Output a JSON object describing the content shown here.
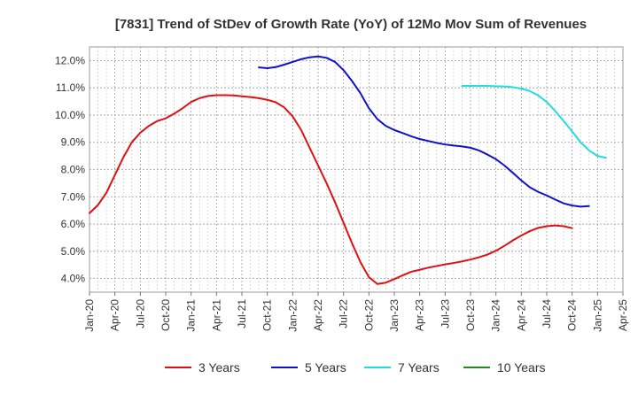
{
  "chart_data": {
    "type": "line",
    "title": "[7831]  Trend of StDev of Growth Rate (YoY) of 12Mo Mov Sum of Revenues",
    "xlabel": "",
    "ylabel": "",
    "ylim": [
      3.5,
      12.5
    ],
    "yticks": [
      4.0,
      5.0,
      6.0,
      7.0,
      8.0,
      9.0,
      10.0,
      11.0,
      12.0
    ],
    "ytick_labels": [
      "4.0%",
      "5.0%",
      "6.0%",
      "7.0%",
      "8.0%",
      "9.0%",
      "10.0%",
      "11.0%",
      "12.0%"
    ],
    "x_ticks": [
      "Jan-20",
      "Apr-20",
      "Jul-20",
      "Oct-20",
      "Jan-21",
      "Apr-21",
      "Jul-21",
      "Oct-21",
      "Jan-22",
      "Apr-22",
      "Jul-22",
      "Oct-22",
      "Jan-23",
      "Apr-23",
      "Jul-23",
      "Oct-23",
      "Jan-24",
      "Apr-24",
      "Jul-24",
      "Oct-24",
      "Jan-25",
      "Apr-25"
    ],
    "x_start": "Jan-20",
    "x_end": "Apr-25",
    "grid": true,
    "legend_position": "bottom",
    "series": [
      {
        "name": "3 Years",
        "color": "#dd1111",
        "start": "Jan-20",
        "values": [
          6.4,
          6.7,
          7.15,
          7.8,
          8.45,
          9.0,
          9.35,
          9.6,
          9.78,
          9.88,
          10.05,
          10.25,
          10.48,
          10.62,
          10.7,
          10.73,
          10.73,
          10.72,
          10.69,
          10.66,
          10.62,
          10.56,
          10.47,
          10.28,
          9.95,
          9.45,
          8.8,
          8.15,
          7.5,
          6.8,
          6.05,
          5.3,
          4.6,
          4.05,
          3.8,
          3.85,
          3.98,
          4.12,
          4.25,
          4.32,
          4.4,
          4.46,
          4.52,
          4.57,
          4.63,
          4.7,
          4.78,
          4.88,
          5.02,
          5.2,
          5.4,
          5.58,
          5.74,
          5.86,
          5.92,
          5.95,
          5.92,
          5.85
        ]
      },
      {
        "name": "5 Years",
        "color": "#1111cc",
        "start": "Sep-21",
        "values": [
          11.75,
          11.72,
          11.76,
          11.85,
          11.95,
          12.05,
          12.12,
          12.15,
          12.1,
          11.95,
          11.65,
          11.25,
          10.8,
          10.25,
          9.85,
          9.6,
          9.45,
          9.34,
          9.22,
          9.12,
          9.05,
          8.98,
          8.92,
          8.88,
          8.85,
          8.8,
          8.7,
          8.55,
          8.38,
          8.15,
          7.88,
          7.6,
          7.35,
          7.18,
          7.05,
          6.9,
          6.76,
          6.68,
          6.64,
          6.66
        ]
      },
      {
        "name": "7 Years",
        "color": "#22dddd",
        "start": "Sep-23",
        "values": [
          11.07,
          11.07,
          11.07,
          11.07,
          11.06,
          11.05,
          11.02,
          10.97,
          10.88,
          10.72,
          10.48,
          10.15,
          9.78,
          9.4,
          9.0,
          8.7,
          8.5,
          8.43
        ]
      },
      {
        "name": "10 Years",
        "color": "#228822",
        "start": "Jan-25",
        "values": []
      }
    ]
  }
}
